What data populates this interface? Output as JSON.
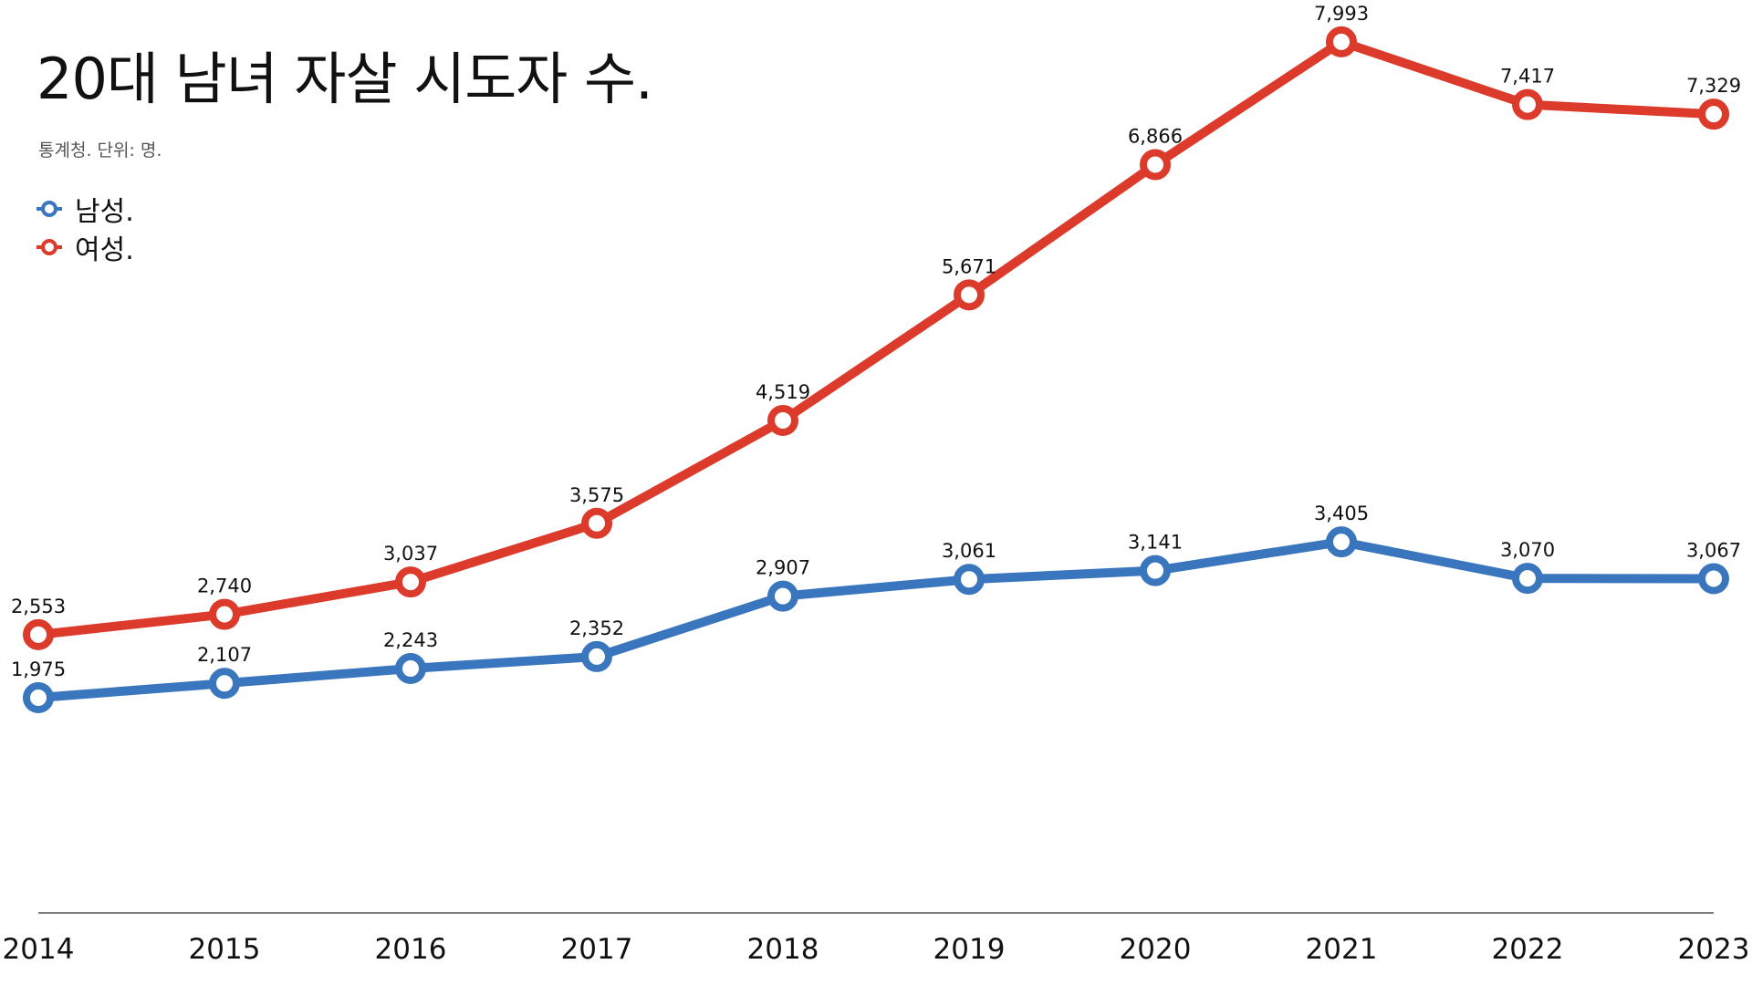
{
  "chart_data": {
    "type": "line",
    "title": "20대 남녀 자살 시도자 수.",
    "subtitle": "통계청. 단위: 명.",
    "categories": [
      "2014",
      "2015",
      "2016",
      "2017",
      "2018",
      "2019",
      "2020",
      "2021",
      "2022",
      "2023"
    ],
    "series": [
      {
        "name": "남성.",
        "color": "#3a76bd",
        "values": [
          1975,
          2107,
          2243,
          2352,
          2907,
          3061,
          3141,
          3405,
          3070,
          3067
        ],
        "labels": [
          "1,975",
          "2,107",
          "2,243",
          "2,352",
          "2,907",
          "3,061",
          "3,141",
          "3,405",
          "3,070",
          "3,067"
        ]
      },
      {
        "name": "여성.",
        "color": "#dc3a2a",
        "values": [
          2553,
          2740,
          3037,
          3575,
          4519,
          5671,
          6866,
          7993,
          7417,
          7329
        ],
        "labels": [
          "2,553",
          "2,740",
          "3,037",
          "3,575",
          "4,519",
          "5,671",
          "6,866",
          "7,993",
          "7,417",
          "7,329"
        ]
      }
    ],
    "ylim": [
      0,
      8500
    ],
    "grid": false,
    "legend": "top-left",
    "xlabel": "",
    "ylabel": ""
  }
}
